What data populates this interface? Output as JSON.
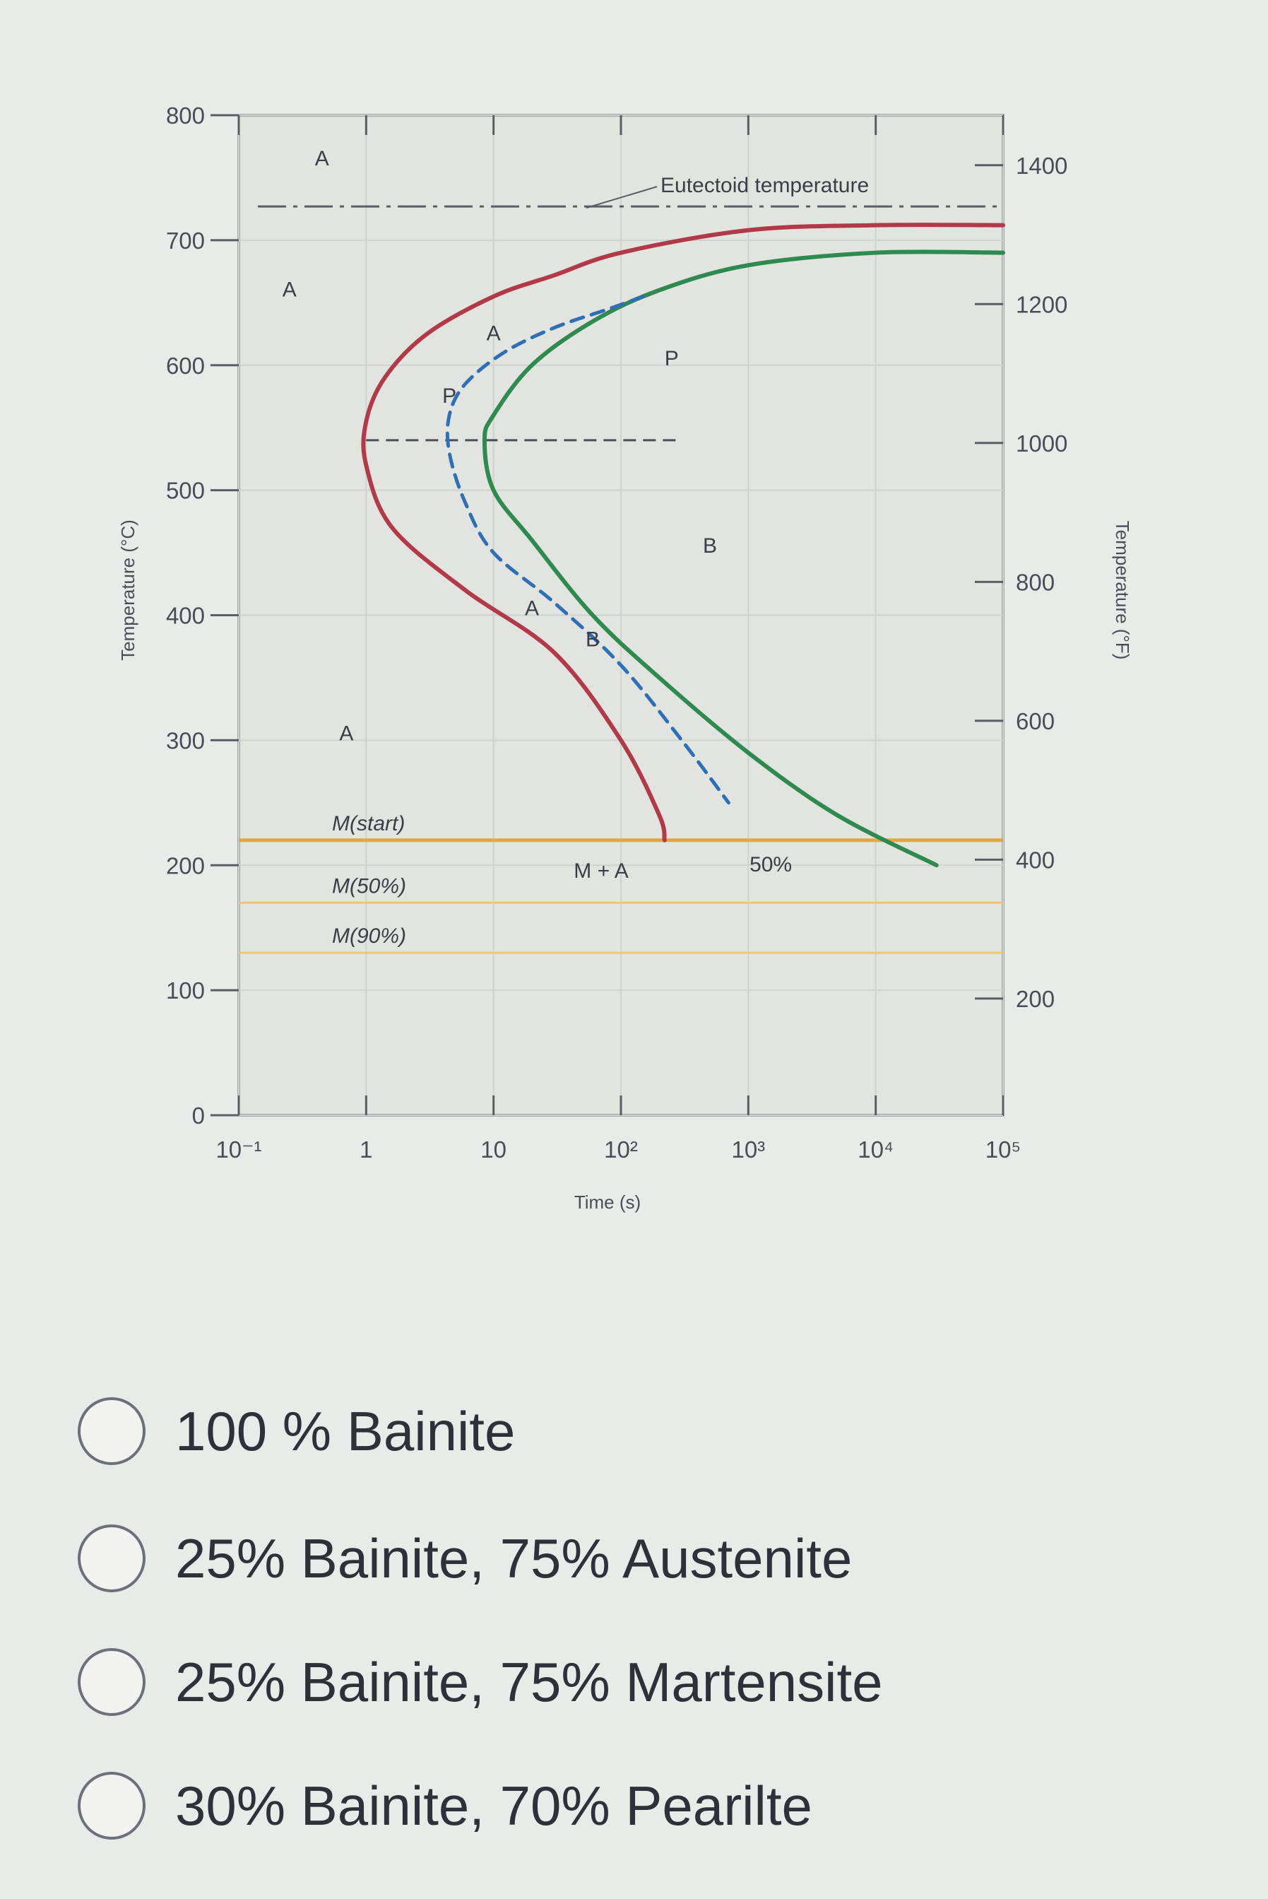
{
  "chart_data": {
    "type": "line",
    "xlabel": "Time (s)",
    "ylabel": "Temperature (°C)",
    "y2label": "Temperature (°F)",
    "x_scale": "log",
    "xlim": [
      0.1,
      100000
    ],
    "ylim": [
      0,
      800
    ],
    "x_ticks": [
      0.1,
      1,
      10,
      100,
      1000,
      10000,
      100000
    ],
    "x_tick_labels": [
      "10⁻¹",
      "1",
      "10",
      "10²",
      "10³",
      "10⁴",
      "10⁵"
    ],
    "y_ticks": [
      0,
      100,
      200,
      300,
      400,
      500,
      600,
      700,
      800
    ],
    "y_tick_labels": [
      "0",
      "100",
      "200",
      "300",
      "400",
      "500",
      "600",
      "700",
      "800"
    ],
    "y2_ticks": [
      200,
      400,
      600,
      800,
      1000,
      1200,
      1400
    ],
    "y2_tick_labels": [
      "200",
      "400",
      "600",
      "800",
      "1000",
      "1200",
      "1400"
    ],
    "eutectoid_temperature": 727,
    "eutectoid_label": "Eutectoid temperature",
    "series": [
      {
        "color": "#b23a48",
        "style": "solid",
        "points": [
          [
            100000,
            712
          ],
          [
            10000,
            712
          ],
          [
            1000,
            708
          ],
          [
            100,
            690
          ],
          [
            30,
            672
          ],
          [
            10,
            655
          ],
          [
            3,
            625
          ],
          [
            1.4,
            590
          ],
          [
            1.0,
            555
          ],
          [
            1.0,
            520
          ],
          [
            1.6,
            470
          ],
          [
            6,
            420
          ],
          [
            30,
            370
          ],
          [
            100,
            300
          ],
          [
            200,
            240
          ],
          [
            220,
            220
          ]
        ]
      },
      {
        "color": "#2f8a4f",
        "style": "solid",
        "points": [
          [
            100000,
            690
          ],
          [
            10000,
            690
          ],
          [
            1000,
            680
          ],
          [
            200,
            660
          ],
          [
            60,
            635
          ],
          [
            20,
            600
          ],
          [
            10,
            560
          ],
          [
            8.5,
            540
          ],
          [
            10,
            500
          ],
          [
            20,
            460
          ],
          [
            60,
            400
          ],
          [
            200,
            350
          ],
          [
            1000,
            290
          ],
          [
            5000,
            240
          ],
          [
            30000,
            200
          ]
        ]
      },
      {
        "color": "#2e6fb5",
        "style": "dashed",
        "points": [
          [
            150,
            655
          ],
          [
            80,
            645
          ],
          [
            30,
            630
          ],
          [
            12,
            610
          ],
          [
            6,
            585
          ],
          [
            4.5,
            560
          ],
          [
            4.5,
            530
          ],
          [
            6,
            490
          ],
          [
            10,
            450
          ],
          [
            30,
            410
          ],
          [
            100,
            360
          ],
          [
            300,
            300
          ],
          [
            700,
            250
          ]
        ]
      }
    ],
    "horizontal_lines": [
      {
        "label": "M(start)",
        "y": 220,
        "color": "#e7a63a"
      },
      {
        "label": "M(50%)",
        "y": 170,
        "color": "#f0c27a"
      },
      {
        "label": "M(90%)",
        "y": 130,
        "color": "#f0c27a"
      }
    ],
    "nose_line_y": 540,
    "region_labels": [
      {
        "text": "A",
        "x": 0.45,
        "y": 760
      },
      {
        "text": "A",
        "x": 0.25,
        "y": 655
      },
      {
        "text": "A",
        "x": 0.7,
        "y": 300
      },
      {
        "text": "P",
        "x": 250,
        "y": 600
      },
      {
        "text": "B",
        "x": 500,
        "y": 450
      },
      {
        "text": "M + A",
        "x": 70,
        "y": 190
      },
      {
        "text": "50%",
        "x": 1500,
        "y": 195
      }
    ],
    "curve_labels": [
      {
        "text": "A",
        "x": 10,
        "y": 620
      },
      {
        "text": "P",
        "x": 4.5,
        "y": 570
      },
      {
        "text": "A",
        "x": 20,
        "y": 400
      },
      {
        "text": "B",
        "x": 60,
        "y": 375
      }
    ]
  },
  "question": {
    "options": [
      "100 % Bainite",
      "25% Bainite, 75% Austenite",
      "25% Bainite, 75% Martensite",
      "30% Bainite, 70% Pearilte"
    ]
  }
}
